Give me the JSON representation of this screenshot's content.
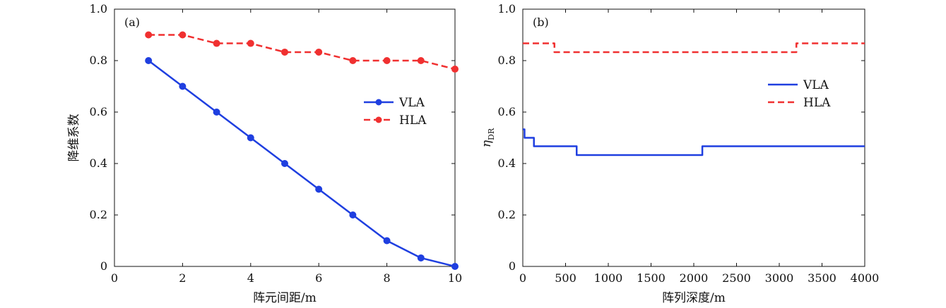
{
  "colors": {
    "vla": "#1f3fe0",
    "hla": "#f03030",
    "axis": "#111111"
  },
  "chart_data": [
    {
      "type": "line",
      "panel_label": "(a)",
      "xlabel": "阵元间距/m",
      "ylabel": "降维系数",
      "xlim": [
        0,
        10
      ],
      "ylim": [
        0,
        1.0
      ],
      "xticks": [
        "0",
        "2",
        "4",
        "6",
        "8",
        "10"
      ],
      "yticks": [
        "0",
        "0.2",
        "0.4",
        "0.6",
        "0.8",
        "1.0"
      ],
      "legend_position": "right",
      "series": [
        {
          "name": "VLA",
          "style": "solid-marker",
          "x": [
            1,
            2,
            3,
            4,
            5,
            6,
            7,
            8,
            9,
            10
          ],
          "y": [
            0.8,
            0.7,
            0.6,
            0.5,
            0.4,
            0.3,
            0.2,
            0.1,
            0.033,
            0.0
          ]
        },
        {
          "name": "HLA",
          "style": "dashed-marker",
          "x": [
            1,
            2,
            3,
            4,
            5,
            6,
            7,
            8,
            9,
            10
          ],
          "y": [
            0.9,
            0.9,
            0.867,
            0.867,
            0.833,
            0.833,
            0.8,
            0.8,
            0.8,
            0.767
          ]
        }
      ]
    },
    {
      "type": "line",
      "panel_label": "(b)",
      "xlabel": "阵列深度/m",
      "ylabel_main": "η",
      "ylabel_sub": "DR",
      "xlim": [
        0,
        4000
      ],
      "ylim": [
        0,
        1.0
      ],
      "xticks": [
        "0",
        "500",
        "1000",
        "1500",
        "2000",
        "2500",
        "3000",
        "3500",
        "4000"
      ],
      "yticks": [
        "0",
        "0.2",
        "0.4",
        "0.6",
        "0.8",
        "1.0"
      ],
      "legend_position": "right",
      "series": [
        {
          "name": "VLA",
          "style": "solid",
          "x": [
            0,
            20,
            20,
            130,
            130,
            630,
            630,
            2100,
            2100,
            4000
          ],
          "y": [
            0.533,
            0.533,
            0.5,
            0.5,
            0.467,
            0.467,
            0.433,
            0.433,
            0.467,
            0.467
          ]
        },
        {
          "name": "HLA",
          "style": "dashed",
          "x": [
            0,
            370,
            370,
            3200,
            3200,
            4000
          ],
          "y": [
            0.867,
            0.867,
            0.833,
            0.833,
            0.867,
            0.867
          ]
        }
      ]
    }
  ]
}
